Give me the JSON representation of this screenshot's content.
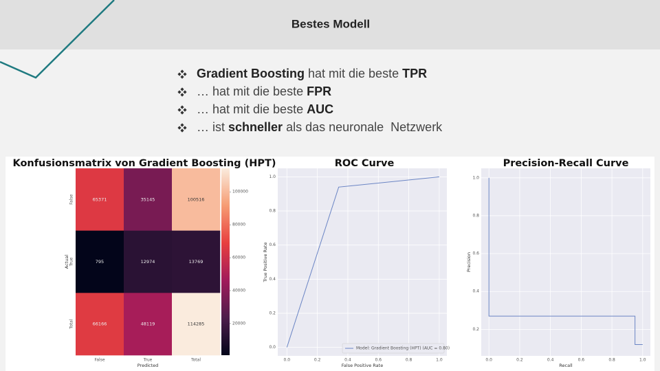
{
  "header": {
    "title": "Bestes Modell"
  },
  "bullets": [
    [
      {
        "text": "Gradient Boosting",
        "bold": true
      },
      {
        "text": " hat mit die beste ",
        "bold": false
      },
      {
        "text": "TPR",
        "bold": true
      }
    ],
    [
      {
        "text": "… hat mit die beste ",
        "bold": false
      },
      {
        "text": "FPR",
        "bold": true
      }
    ],
    [
      {
        "text": "… hat mit die beste ",
        "bold": false
      },
      {
        "text": "AUC",
        "bold": true
      }
    ],
    [
      {
        "text": "… ist ",
        "bold": false
      },
      {
        "text": "schneller",
        "bold": true
      },
      {
        "text": " als das neuronale  Netzwerk",
        "bold": false
      }
    ]
  ],
  "chart_data": [
    {
      "type": "heatmap",
      "title": "Konfusionsmatrix von Gradient Boosting (HPT)",
      "x_categories": [
        "False",
        "True",
        "Total"
      ],
      "y_categories": [
        "False",
        "True",
        "Total"
      ],
      "values": [
        [
          65371,
          35145,
          100516
        ],
        [
          795,
          12974,
          13769
        ],
        [
          66166,
          48119,
          114285
        ]
      ],
      "xlabel": "Predicted",
      "ylabel": "Actual",
      "colormap": "rocket",
      "colorbar_ticks": [
        20000,
        40000,
        60000,
        80000,
        100000
      ]
    },
    {
      "type": "line",
      "title": "ROC Curve",
      "x": [
        0,
        0.34,
        1
      ],
      "series": [
        {
          "name": "Model: Gradient Boosting (HPT) (AUC = 0.80)",
          "color": "#6a84c4",
          "values": [
            0,
            0.94,
            1
          ]
        }
      ],
      "xlabel": "False Positive Rate",
      "ylabel": "True Positive Rate",
      "xlim": [
        -0.06,
        1.05
      ],
      "ylim": [
        -0.05,
        1.05
      ],
      "xticks": [
        {
          "value": 0,
          "label": "0.0"
        },
        0.2,
        0.4,
        0.6,
        0.8,
        {
          "value": 1,
          "label": "1.0"
        }
      ],
      "yticks": [
        {
          "value": 0,
          "label": "0.0"
        },
        0.2,
        0.4,
        0.6,
        0.8,
        {
          "value": 1,
          "label": "1.0"
        }
      ],
      "grid": true,
      "legend": "lower right"
    },
    {
      "type": "line",
      "title": "Precision-Recall Curve",
      "x": [
        0,
        0,
        0.95,
        0.95,
        1
      ],
      "series": [
        {
          "color": "#6a84c4",
          "values": [
            1,
            0.27,
            0.27,
            0.12,
            0.12
          ]
        }
      ],
      "xlabel": "Recall",
      "ylabel": "Precision",
      "xlim": [
        -0.05,
        1.05
      ],
      "ylim": [
        0.06,
        1.05
      ],
      "xticks": [
        {
          "value": 0,
          "label": "0.0"
        },
        0.2,
        0.4,
        0.6,
        0.8,
        {
          "value": 1,
          "label": "1.0"
        }
      ],
      "yticks": [
        0.2,
        0.4,
        0.6,
        0.8,
        {
          "value": 1,
          "label": "1.0"
        }
      ],
      "grid": true
    }
  ]
}
